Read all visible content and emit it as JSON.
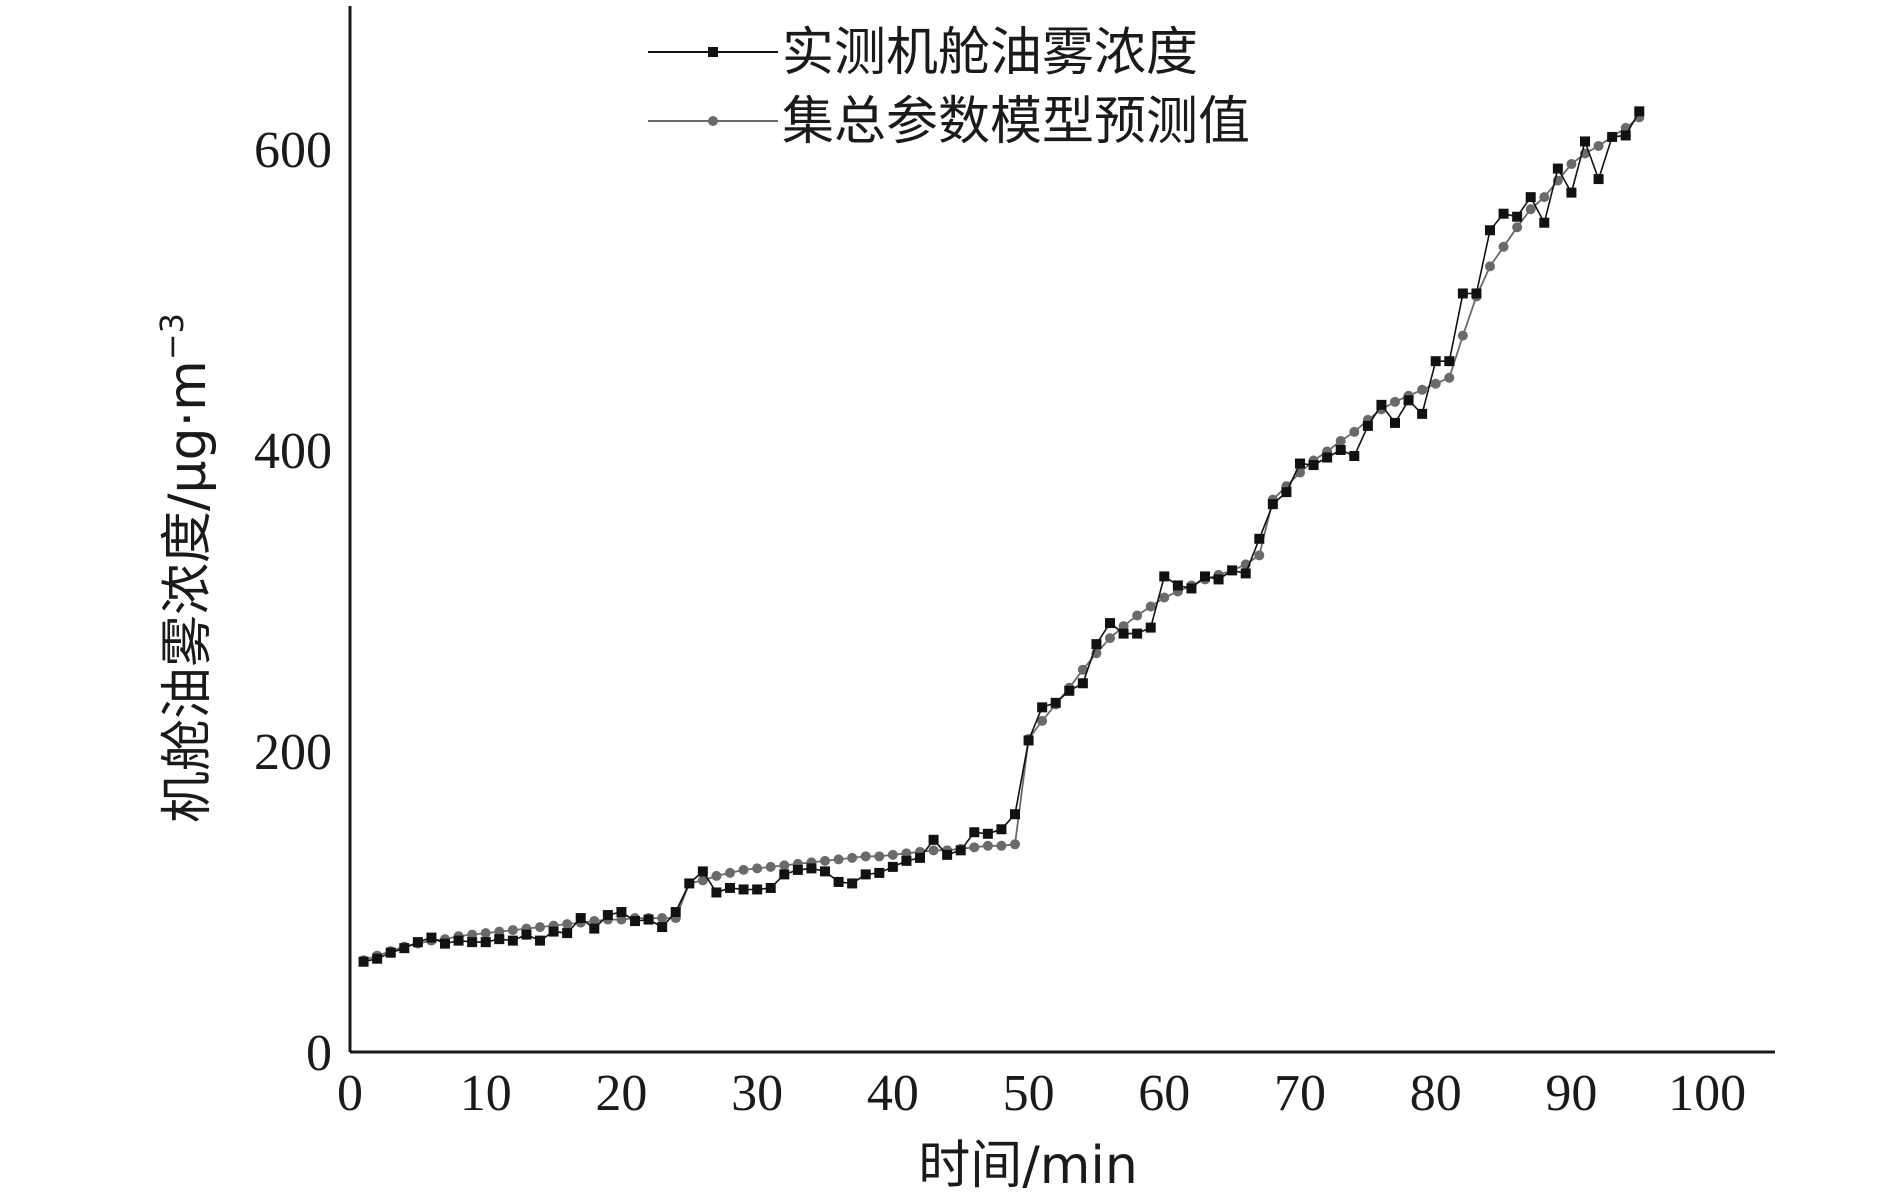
{
  "chart_data": {
    "type": "line",
    "title": "",
    "xlabel": "时间/min",
    "ylabel": "机舱油雾浓度/μg·m",
    "ylabel_superscript": "−3",
    "xlim": [
      0,
      105
    ],
    "ylim": [
      0,
      695
    ],
    "xticks": [
      0,
      10,
      20,
      30,
      40,
      50,
      60,
      70,
      80,
      90,
      100
    ],
    "yticks": [
      0,
      200,
      400,
      600
    ],
    "xtick_labels": [
      "0",
      "10",
      "20",
      "30",
      "40",
      "50",
      "60",
      "70",
      "80",
      "90",
      "100"
    ],
    "ytick_labels": [
      "0",
      "200",
      "400",
      "600"
    ],
    "grid": false,
    "legend_position": "top-center",
    "series": [
      {
        "name": "实测机舱油雾浓度",
        "color": "#111111",
        "marker": "square",
        "x": [
          1,
          2,
          3,
          4,
          5,
          6,
          7,
          8,
          9,
          10,
          11,
          12,
          13,
          14,
          15,
          16,
          17,
          18,
          19,
          20,
          21,
          22,
          23,
          24,
          25,
          26,
          27,
          28,
          29,
          30,
          31,
          32,
          33,
          34,
          35,
          36,
          37,
          38,
          39,
          40,
          41,
          42,
          43,
          44,
          45,
          46,
          47,
          48,
          49,
          50,
          51,
          52,
          53,
          54,
          55,
          56,
          57,
          58,
          59,
          60,
          61,
          62,
          63,
          64,
          65,
          66,
          67,
          68,
          69,
          70,
          71,
          72,
          73,
          74,
          75,
          76,
          77,
          78,
          79,
          80,
          81,
          82,
          83,
          84,
          85,
          86,
          87,
          88,
          89,
          90,
          91,
          92,
          93,
          94,
          95
        ],
        "y": [
          60,
          62,
          66,
          69,
          73,
          76,
          72,
          74,
          73,
          73,
          75,
          74,
          78,
          74,
          80,
          79,
          89,
          82,
          91,
          93,
          87,
          88,
          83,
          93,
          112,
          120,
          106,
          109,
          108,
          108,
          109,
          118,
          121,
          122,
          120,
          113,
          112,
          118,
          119,
          123,
          127,
          129,
          141,
          131,
          134,
          146,
          145,
          148,
          158,
          207,
          229,
          232,
          240,
          245,
          271,
          285,
          278,
          278,
          282,
          316,
          310,
          308,
          316,
          314,
          320,
          318,
          341,
          364,
          372,
          391,
          390,
          395,
          400,
          396,
          416,
          430,
          418,
          433,
          424,
          459,
          459,
          504,
          504,
          546,
          557,
          555,
          568,
          551,
          587,
          571,
          605,
          580,
          608,
          609,
          625
        ]
      },
      {
        "name": "集总参数模型预测值",
        "color": "#6a6a6a",
        "marker": "circle",
        "x": [
          1,
          2,
          3,
          4,
          5,
          6,
          7,
          8,
          9,
          10,
          11,
          12,
          13,
          14,
          15,
          16,
          17,
          18,
          19,
          20,
          21,
          22,
          23,
          24,
          25,
          26,
          27,
          28,
          29,
          30,
          31,
          32,
          33,
          34,
          35,
          36,
          37,
          38,
          39,
          40,
          41,
          42,
          43,
          44,
          45,
          46,
          47,
          48,
          49,
          50,
          51,
          52,
          53,
          54,
          55,
          56,
          57,
          58,
          59,
          60,
          61,
          62,
          63,
          64,
          65,
          66,
          67,
          68,
          69,
          70,
          71,
          72,
          73,
          74,
          75,
          76,
          77,
          78,
          79,
          80,
          81,
          82,
          83,
          84,
          85,
          86,
          87,
          88,
          89,
          90,
          91,
          92,
          93,
          94,
          95
        ],
        "y": [
          61,
          64,
          67,
          70,
          72,
          74,
          75,
          77,
          78,
          79,
          80,
          81,
          82,
          83,
          84,
          85,
          86,
          87,
          88,
          88,
          89,
          89,
          89,
          89,
          112,
          114,
          117,
          119,
          121,
          122,
          123,
          124,
          125,
          126,
          127,
          128,
          129,
          130,
          130,
          131,
          132,
          133,
          134,
          134,
          135,
          136,
          137,
          137,
          138,
          208,
          220,
          231,
          242,
          254,
          265,
          275,
          283,
          290,
          296,
          302,
          306,
          310,
          314,
          317,
          320,
          324,
          330,
          367,
          376,
          385,
          393,
          399,
          406,
          412,
          420,
          427,
          432,
          436,
          440,
          444,
          448,
          476,
          502,
          522,
          535,
          548,
          560,
          568,
          579,
          590,
          597,
          602,
          608,
          614,
          621
        ]
      }
    ]
  }
}
